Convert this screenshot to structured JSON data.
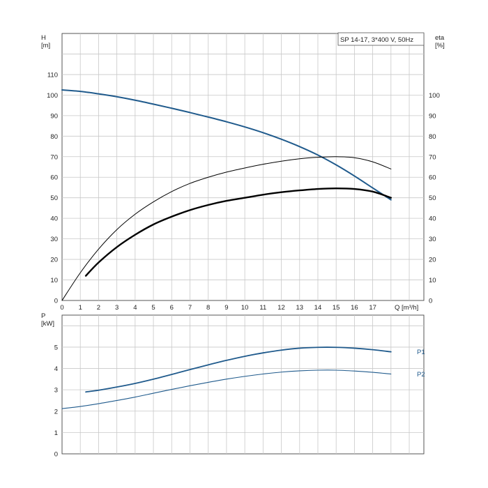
{
  "chart_data": [
    {
      "type": "line",
      "title": "SP 14-17, 3*400 V, 50Hz",
      "xlabel": "Q [m³/h]",
      "ylabel_left": "H\n[m]",
      "ylabel_right": "eta\n[%]",
      "xlim": [
        0,
        19.8
      ],
      "ylim_left": [
        0,
        130
      ],
      "ylim_right": [
        0,
        130
      ],
      "x_ticks": [
        0,
        1,
        2,
        3,
        4,
        5,
        6,
        7,
        8,
        9,
        10,
        11,
        12,
        13,
        14,
        15,
        16,
        17
      ],
      "y_ticks_left": [
        0,
        10,
        20,
        30,
        40,
        50,
        60,
        70,
        80,
        90,
        100,
        110
      ],
      "y_ticks_right": [
        0,
        10,
        20,
        30,
        40,
        50,
        60,
        70,
        80,
        90,
        100
      ],
      "grid": true,
      "series": [
        {
          "color": "#1f5a8c",
          "axis": "left",
          "x": [
            0,
            1,
            2,
            3,
            4,
            5,
            6,
            7,
            8,
            9,
            10,
            11,
            12,
            13,
            14,
            15,
            16,
            17,
            18
          ],
          "y": [
            102.5,
            101.8,
            100.6,
            99.2,
            97.5,
            95.6,
            93.6,
            91.5,
            89.3,
            87.0,
            84.5,
            81.7,
            78.5,
            74.9,
            70.8,
            66.0,
            60.6,
            54.8,
            49.0
          ]
        },
        {
          "color": "#000000",
          "axis": "right",
          "x": [
            0,
            1,
            2,
            3,
            4,
            5,
            6,
            7,
            8,
            9,
            10,
            11,
            12,
            13,
            14,
            15,
            16,
            17,
            18
          ],
          "y": [
            0,
            13.5,
            25.0,
            34.5,
            42.0,
            48.0,
            53.0,
            57.0,
            60.0,
            62.5,
            64.5,
            66.3,
            67.8,
            69.0,
            69.7,
            70.0,
            69.5,
            67.5,
            64.0
          ]
        },
        {
          "color": "#000000",
          "axis": "right",
          "x": [
            1.3,
            2,
            3,
            4,
            5,
            6,
            7,
            8,
            9,
            10,
            11,
            12,
            13,
            14,
            15,
            16,
            17,
            18
          ],
          "y": [
            12.0,
            18.5,
            26.0,
            32.0,
            37.0,
            40.8,
            44.0,
            46.5,
            48.5,
            50.0,
            51.5,
            52.7,
            53.6,
            54.3,
            54.6,
            54.3,
            53.0,
            50.0
          ]
        }
      ]
    },
    {
      "type": "line",
      "ylabel": "P\n[kW]",
      "xlim": [
        0,
        19.8
      ],
      "ylim": [
        0,
        6.5
      ],
      "y_ticks": [
        0,
        1,
        2,
        3,
        4,
        5
      ],
      "grid": true,
      "series": [
        {
          "name": "P1",
          "color": "#1f5a8c",
          "x": [
            1.3,
            2,
            3,
            4,
            5,
            6,
            7,
            8,
            9,
            10,
            11,
            12,
            13,
            14,
            15,
            16,
            17,
            18
          ],
          "y": [
            2.9,
            2.98,
            3.13,
            3.3,
            3.5,
            3.72,
            3.95,
            4.17,
            4.38,
            4.57,
            4.73,
            4.86,
            4.95,
            4.99,
            4.99,
            4.95,
            4.88,
            4.78
          ]
        },
        {
          "name": "P2",
          "color": "#1f5a8c",
          "x": [
            0,
            1,
            2,
            3,
            4,
            5,
            6,
            7,
            8,
            9,
            10,
            11,
            12,
            13,
            14,
            15,
            16,
            17,
            18
          ],
          "y": [
            2.12,
            2.22,
            2.35,
            2.5,
            2.66,
            2.84,
            3.02,
            3.19,
            3.35,
            3.5,
            3.63,
            3.74,
            3.83,
            3.89,
            3.92,
            3.92,
            3.88,
            3.82,
            3.74
          ]
        }
      ]
    }
  ]
}
